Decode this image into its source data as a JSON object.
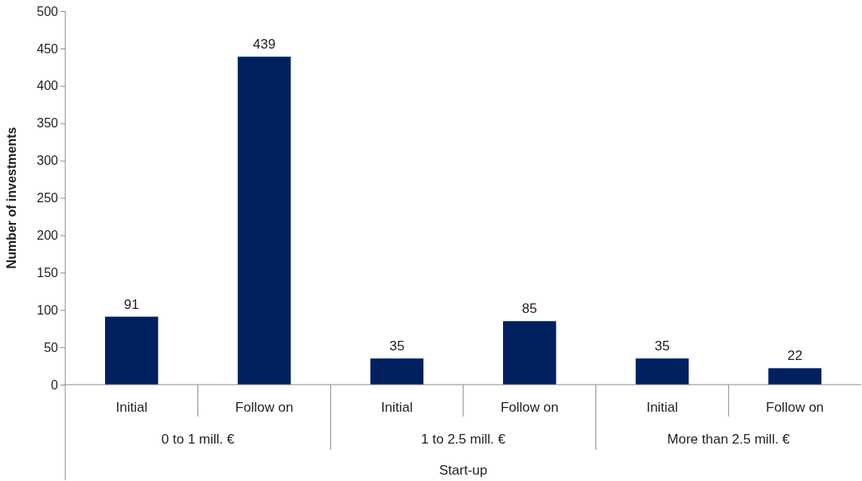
{
  "chart_data": {
    "type": "bar",
    "ylabel": "Number of investments",
    "xlabel": "Start-up",
    "categories": [
      "Initial",
      "Follow on",
      "Initial",
      "Follow on",
      "Initial",
      "Follow on"
    ],
    "values": [
      91,
      439,
      35,
      85,
      35,
      22
    ],
    "color": "#002060",
    "ylim": [
      0,
      500
    ],
    "yticks": [
      0,
      50,
      100,
      150,
      200,
      250,
      300,
      350,
      400,
      450,
      500
    ],
    "grid": false,
    "data_labels": true,
    "annotations": [
      "0 to 1 mill. €",
      "1 to 2.5 mill. €",
      "More than 2.5 mill. €"
    ]
  }
}
